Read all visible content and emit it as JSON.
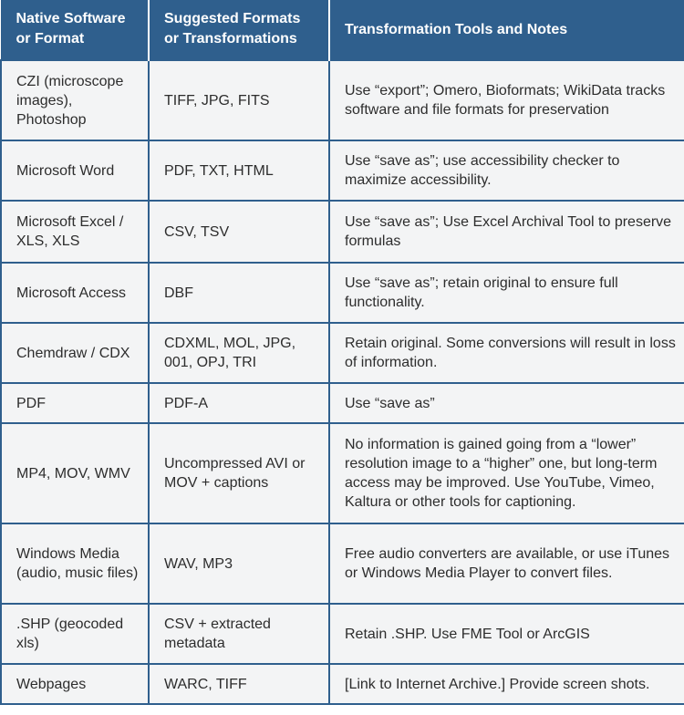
{
  "table": {
    "headers": [
      "Native Software or Format",
      "Suggested Formats or Transformations",
      "Transformation Tools and Notes"
    ],
    "rows": [
      [
        "CZI (microscope images), Photoshop",
        "TIFF, JPG, FITS",
        "Use “export”; Omero, Bioformats; WikiData tracks software and file formats for preservation"
      ],
      [
        "Microsoft Word",
        "PDF, TXT, HTML",
        "Use “save as”; use accessibility checker to maximize accessibility."
      ],
      [
        "Microsoft Excel / XLS, XLS",
        "CSV, TSV",
        "Use “save as”; Use Excel Archival Tool to preserve formulas"
      ],
      [
        "Microsoft Access",
        "DBF",
        "Use “save as”; retain original to ensure full functionality."
      ],
      [
        "Chemdraw / CDX",
        "CDXML, MOL, JPG, 001, OPJ, TRI",
        "Retain original. Some conversions will result in loss of information."
      ],
      [
        "PDF",
        "PDF-A",
        "Use “save as”"
      ],
      [
        "MP4, MOV, WMV",
        "Uncompressed AVI or MOV + captions",
        "No information is gained going from a “lower” resolution image to a “higher” one, but long-term access may be improved. Use YouTube, Vimeo, Kaltura or other tools for captioning."
      ],
      [
        "Windows Media (audio, music files)",
        "WAV, MP3",
        "Free audio converters are available, or use iTunes or Windows Media Player to convert files."
      ],
      [
        ".SHP (geocoded xls)",
        "CSV + extracted metadata",
        "Retain .SHP. Use FME Tool or ArcGIS"
      ],
      [
        "Webpages",
        "WARC, TIFF",
        "[Link to Internet Archive.] Provide screen shots."
      ]
    ]
  },
  "colors": {
    "header_bg": "#2f5f8d",
    "header_text": "#ffffff",
    "cell_bg": "#f3f4f5",
    "cell_text": "#2d2d2d",
    "border": "#2f5f8d"
  }
}
